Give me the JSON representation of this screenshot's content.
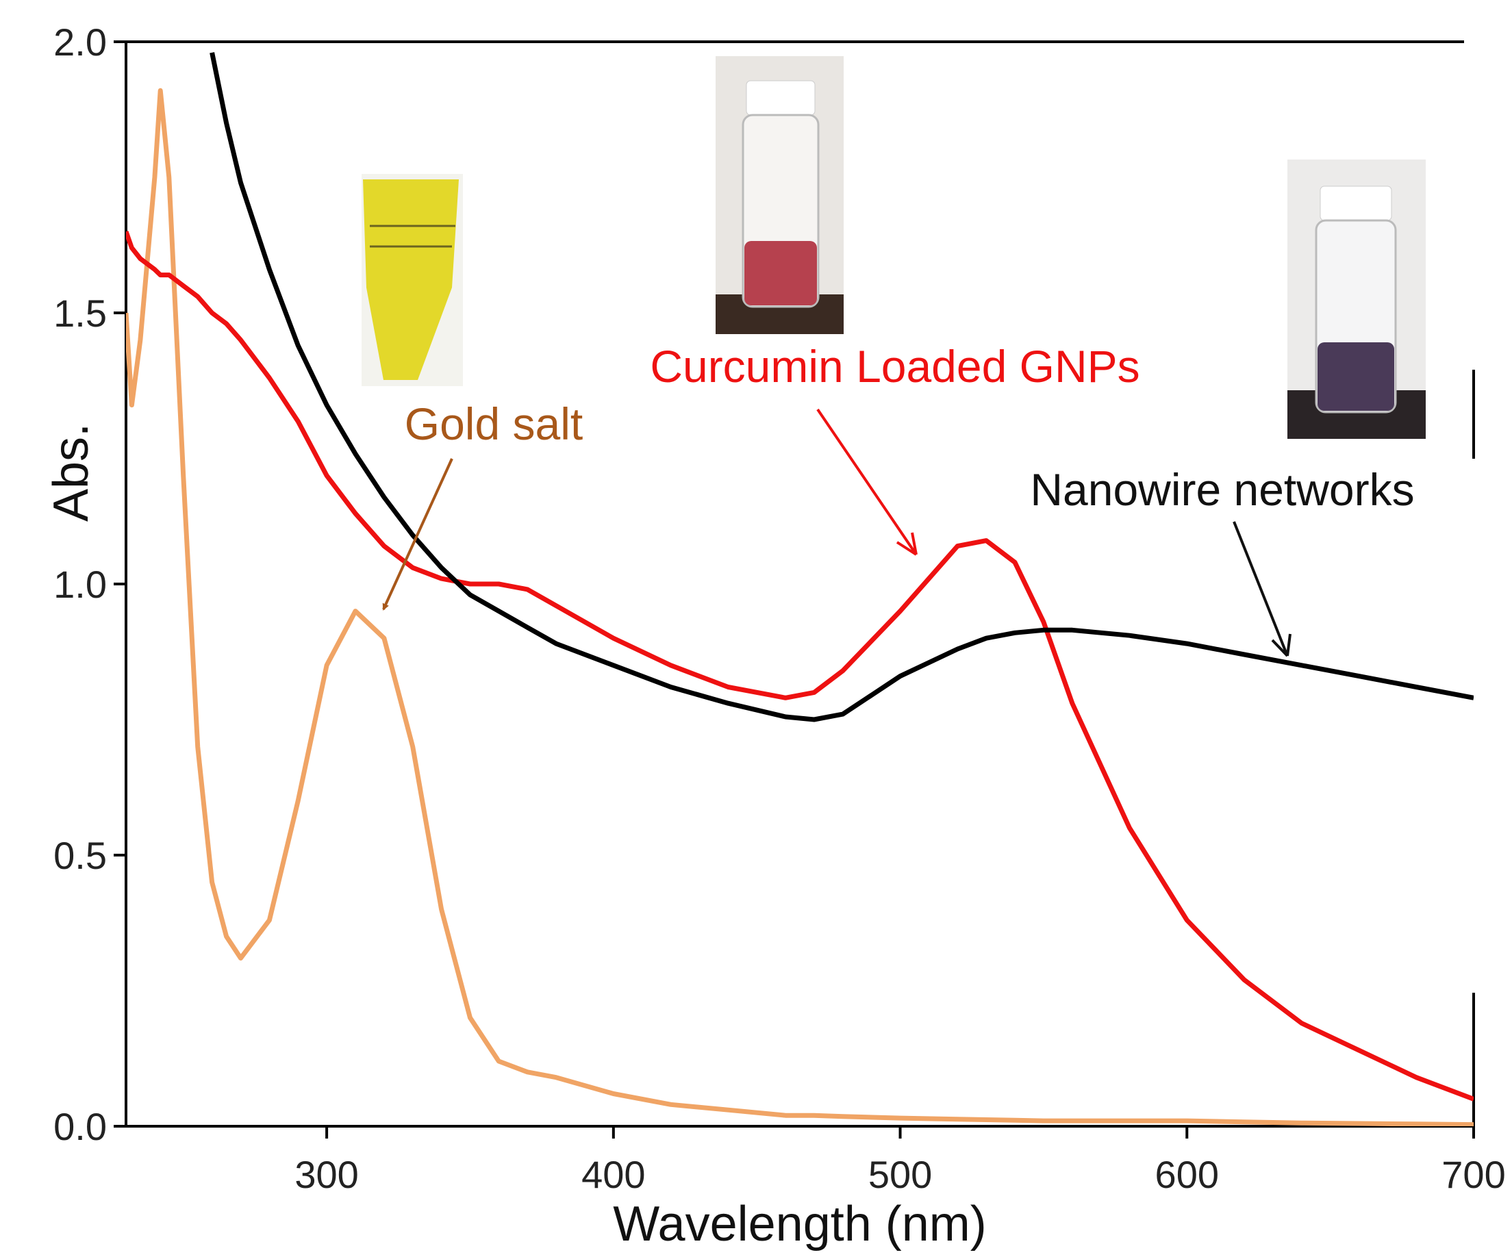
{
  "chart_data": {
    "type": "line",
    "xlabel": "Wavelength (nm)",
    "ylabel": "Abs.",
    "x": [
      230,
      232,
      235,
      240,
      242,
      245,
      250,
      255,
      260,
      265,
      270,
      280,
      290,
      300,
      310,
      320,
      330,
      340,
      350,
      360,
      370,
      380,
      400,
      420,
      440,
      460,
      470,
      480,
      500,
      520,
      530,
      540,
      550,
      560,
      580,
      600,
      620,
      640,
      660,
      680,
      700
    ],
    "series": [
      {
        "name": "Gold salt",
        "color": "#f0a465",
        "values": [
          1.5,
          1.33,
          1.45,
          1.75,
          1.91,
          1.75,
          1.2,
          0.7,
          0.45,
          0.35,
          0.31,
          0.38,
          0.6,
          0.85,
          0.95,
          0.9,
          0.7,
          0.4,
          0.2,
          0.12,
          0.1,
          0.09,
          0.06,
          0.04,
          0.03,
          0.02,
          0.02,
          0.018,
          0.015,
          0.013,
          0.012,
          0.011,
          0.01,
          0.01,
          0.01,
          0.01,
          0.008,
          0.006,
          0.005,
          0.004,
          0.003
        ]
      },
      {
        "name": "Curcumin Loaded GNPs",
        "color": "#ee1111",
        "values": [
          1.65,
          1.62,
          1.6,
          1.58,
          1.57,
          1.57,
          1.55,
          1.53,
          1.5,
          1.48,
          1.45,
          1.38,
          1.3,
          1.2,
          1.13,
          1.07,
          1.03,
          1.01,
          1.0,
          1.0,
          0.99,
          0.96,
          0.9,
          0.85,
          0.81,
          0.79,
          0.8,
          0.84,
          0.95,
          1.07,
          1.08,
          1.04,
          0.93,
          0.78,
          0.55,
          0.38,
          0.27,
          0.19,
          0.14,
          0.09,
          0.05
        ]
      },
      {
        "name": "Nanowire networks",
        "color": "#000000",
        "values": [
          null,
          null,
          null,
          null,
          null,
          null,
          null,
          null,
          1.98,
          1.85,
          1.74,
          1.58,
          1.44,
          1.33,
          1.24,
          1.16,
          1.09,
          1.03,
          0.98,
          0.95,
          0.92,
          0.89,
          0.85,
          0.81,
          0.78,
          0.755,
          0.75,
          0.76,
          0.83,
          0.88,
          0.9,
          0.91,
          0.915,
          0.915,
          0.905,
          0.89,
          0.87,
          0.85,
          0.83,
          0.81,
          0.79
        ]
      }
    ],
    "xlim": [
      230,
      700
    ],
    "xticks": [
      300,
      400,
      500,
      600,
      700
    ],
    "ylim": [
      0,
      2.0
    ],
    "yticks": [
      {
        "value": 0,
        "label": "0.0"
      },
      {
        "value": 0.5,
        "label": "0.5"
      },
      {
        "value": 1.0,
        "label": "1.0"
      },
      {
        "value": 1.5,
        "label": "1.5"
      },
      {
        "value": 2.0,
        "label": "2.0"
      }
    ],
    "grid": false
  }
}
